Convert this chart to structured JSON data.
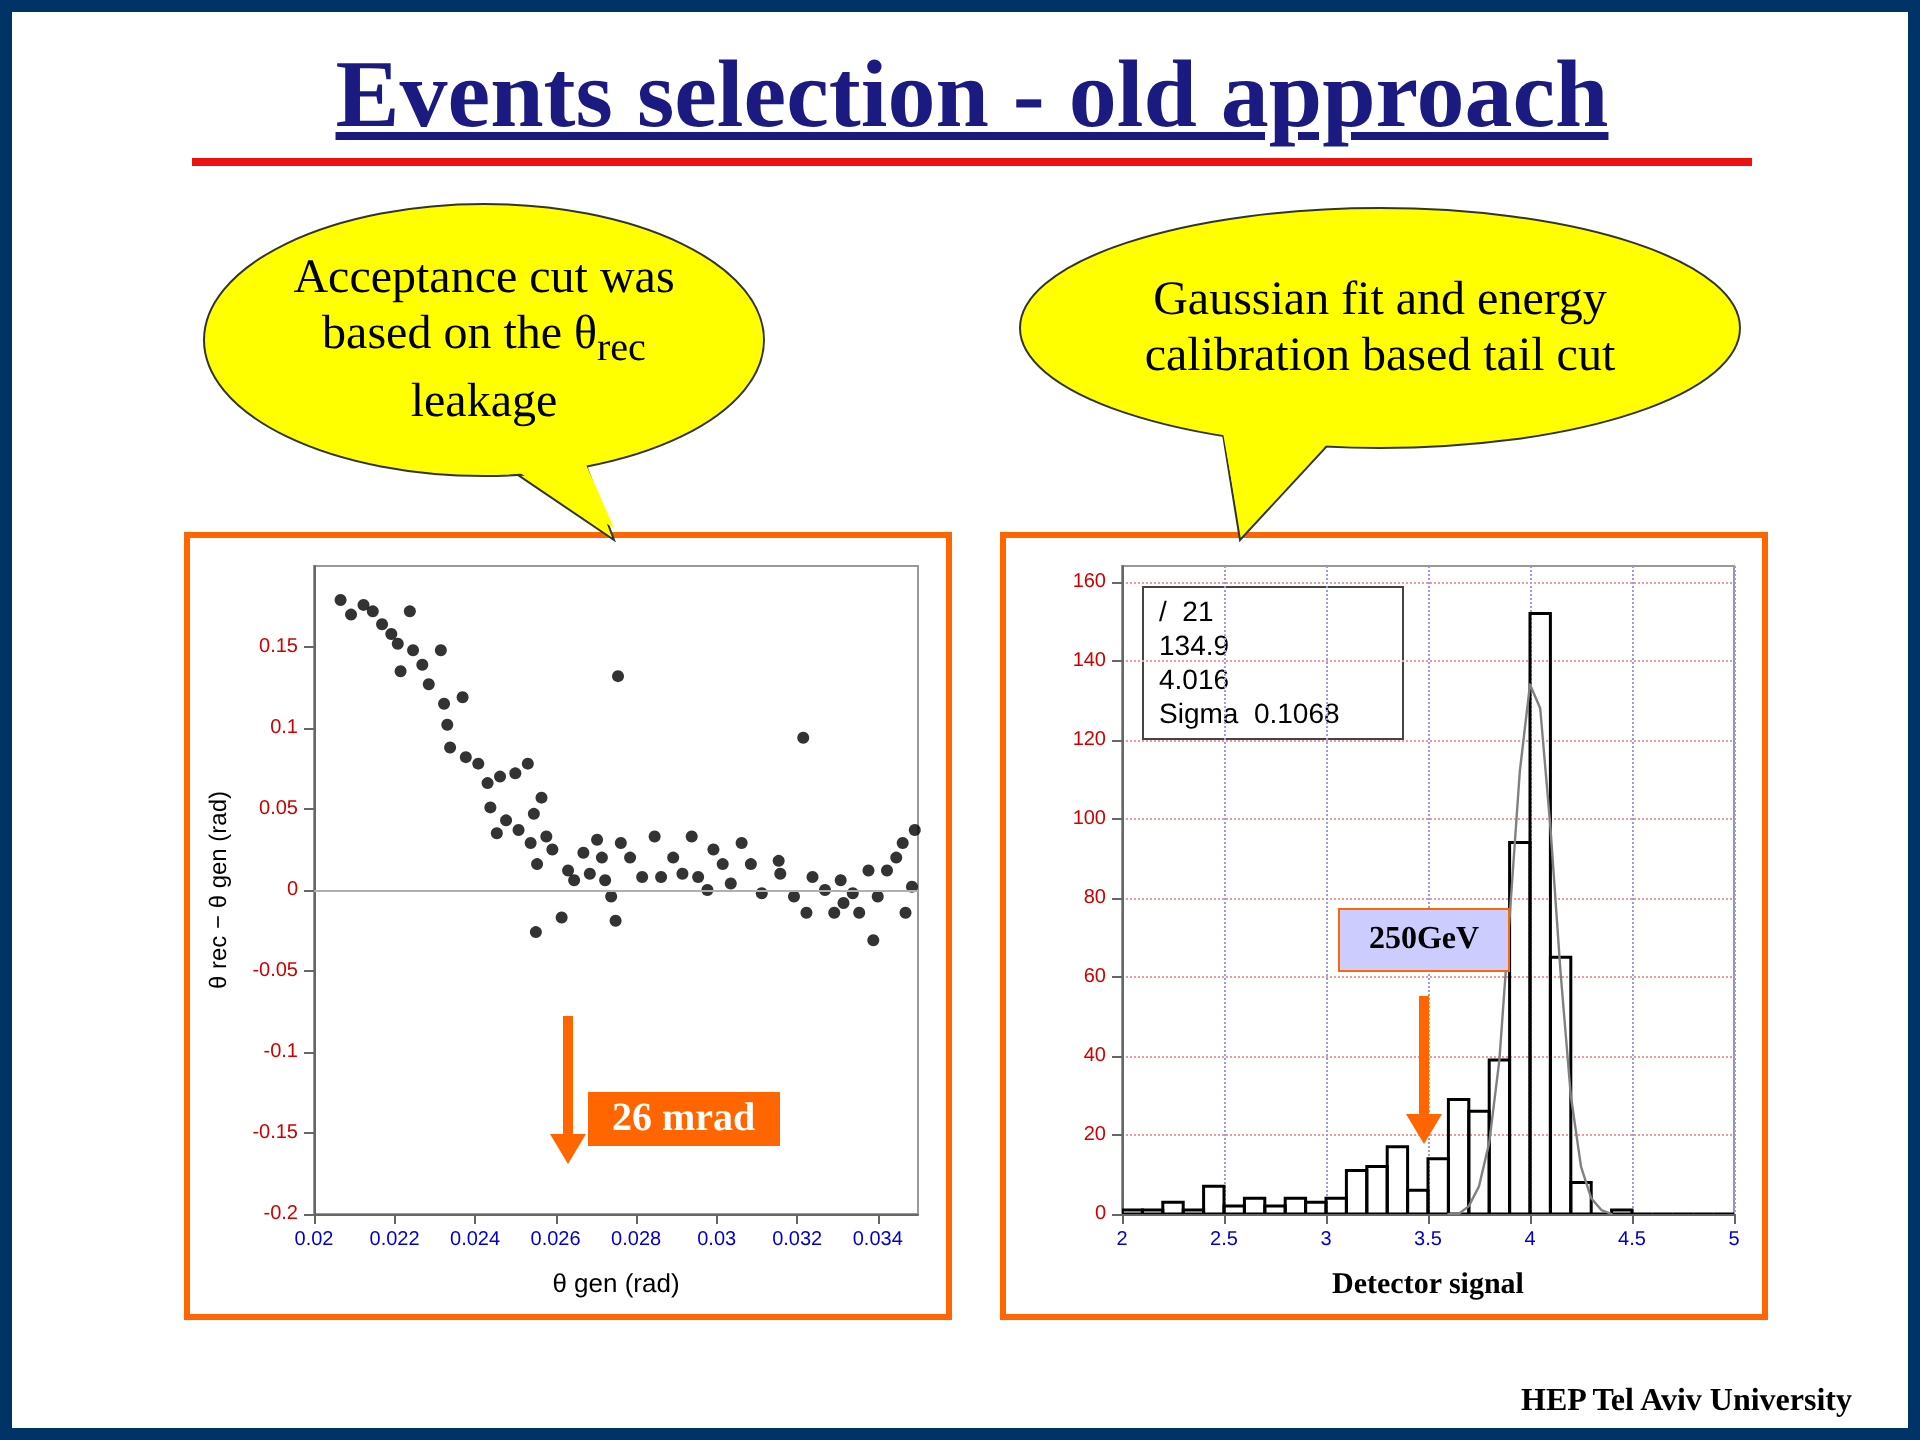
{
  "chart_data": [
    {
      "type": "other",
      "title": "Events selection - old approach",
      "annotations": [
        "HEP Tel Aviv University"
      ]
    },
    {
      "type": "scatter",
      "xlabel": "θ gen (rad)",
      "ylabel": "θ rec − θ gen (rad)",
      "color": "#000000",
      "marker": "circle",
      "x": [
        0.02066,
        0.02092,
        0.02123,
        0.02146,
        0.02169,
        0.02192,
        0.02208,
        0.02238,
        0.02215,
        0.02246,
        0.02269,
        0.02285,
        0.02315,
        0.02323,
        0.02331,
        0.02338,
        0.02369,
        0.02377,
        0.02408,
        0.02431,
        0.02438,
        0.02462,
        0.02454,
        0.02477,
        0.025,
        0.02508,
        0.02531,
        0.02538,
        0.02546,
        0.02554,
        0.02565,
        0.02551,
        0.02577,
        0.02592,
        0.02615,
        0.02631,
        0.02646,
        0.02669,
        0.02685,
        0.02703,
        0.02715,
        0.02723,
        0.02738,
        0.02749,
        0.02755,
        0.02762,
        0.02785,
        0.02815,
        0.02846,
        0.02862,
        0.02892,
        0.02915,
        0.02938,
        0.02954,
        0.02977,
        0.02992,
        0.03015,
        0.03035,
        0.03062,
        0.03085,
        0.03112,
        0.03154,
        0.03158,
        0.03192,
        0.03215,
        0.03223,
        0.03238,
        0.03269,
        0.03292,
        0.03308,
        0.03315,
        0.03338,
        0.03354,
        0.03377,
        0.03389,
        0.034,
        0.03423,
        0.03446,
        0.03462,
        0.03469,
        0.03485,
        0.03492
      ],
      "values": [
        0.179,
        0.17,
        0.176,
        0.172,
        0.164,
        0.158,
        0.152,
        0.172,
        0.135,
        0.148,
        0.139,
        0.127,
        0.148,
        0.115,
        0.102,
        0.088,
        0.119,
        0.082,
        0.078,
        0.066,
        0.051,
        0.07,
        0.035,
        0.043,
        0.072,
        0.037,
        0.078,
        0.029,
        0.047,
        0.016,
        0.057,
        -0.026,
        0.033,
        0.025,
        -0.017,
        0.012,
        0.006,
        0.023,
        0.01,
        0.031,
        0.02,
        0.006,
        -0.004,
        -0.019,
        0.132,
        0.029,
        0.02,
        0.008,
        0.033,
        0.008,
        0.02,
        0.01,
        0.033,
        0.008,
        0.0,
        0.025,
        0.016,
        0.004,
        0.029,
        0.016,
        -0.002,
        0.018,
        0.01,
        -0.004,
        0.094,
        -0.014,
        0.008,
        0.0,
        -0.014,
        0.006,
        -0.008,
        -0.002,
        -0.014,
        0.012,
        -0.031,
        -0.004,
        0.012,
        0.02,
        0.029,
        -0.014,
        0.002,
        0.037
      ],
      "xlim": [
        0.02,
        0.035
      ],
      "xticks": [
        0.02,
        0.022,
        0.024,
        0.026,
        0.028,
        0.03,
        0.032,
        0.034
      ],
      "ylim": [
        -0.2,
        0.2
      ],
      "yticks": [
        -0.2,
        -0.15,
        -0.1,
        -0.05,
        0,
        0.05,
        0.1,
        0.15
      ],
      "ref_lines": [
        {
          "axis": "y",
          "value": 0,
          "color": "#b0b0b0"
        }
      ],
      "annotations": [
        "Acceptance cut was based on the θ$_{rec}$ leakage",
        "26 mrad"
      ]
    },
    {
      "type": "histogram",
      "xlabel": "Detector signal",
      "grid": true,
      "bins": [
        2,
        2.1,
        2.2,
        2.3,
        2.4,
        2.5,
        2.6,
        2.7,
        2.8,
        2.9,
        3,
        3.1,
        3.2,
        3.3,
        3.4,
        3.5,
        3.6,
        3.7,
        3.8,
        3.9,
        4,
        4.1,
        4.2,
        4.3,
        4.4,
        4.5,
        4.6,
        4.7,
        4.8,
        4.9,
        5
      ],
      "series": [
        {
          "type": "histogram",
          "color": "#000000",
          "values": [
            1,
            1,
            3,
            1,
            7,
            2,
            4,
            2,
            4,
            3,
            4,
            11,
            12,
            17,
            6,
            14,
            29,
            26,
            39,
            94,
            152,
            65,
            8,
            0,
            1,
            0,
            0,
            0,
            0,
            0
          ]
        },
        {
          "type": "line",
          "color": "#808080",
          "x": [
            3.6,
            3.65,
            3.7,
            3.75,
            3.8,
            3.85,
            3.9,
            3.95,
            4.0,
            4.05,
            4.1,
            4.15,
            4.2,
            4.25,
            4.3,
            4.35,
            4.4
          ],
          "values": [
            0,
            0,
            2,
            7,
            18,
            39,
            75,
            112,
            134,
            128,
            98,
            61,
            30,
            12,
            4,
            1,
            0
          ]
        }
      ],
      "xlim": [
        2,
        5
      ],
      "xticks": [
        2,
        2.5,
        3,
        3.5,
        4,
        4.5,
        5
      ],
      "ylim": [
        0,
        164
      ],
      "yticks": [
        0,
        20,
        40,
        60,
        80,
        100,
        120,
        140,
        160
      ],
      "annotations": [
        "Gaussian fit and energy calibration based tail cut",
        "250GeV",
        "/  21",
        "134.9",
        "4.016",
        "Sigma  0.1068"
      ]
    }
  ]
}
